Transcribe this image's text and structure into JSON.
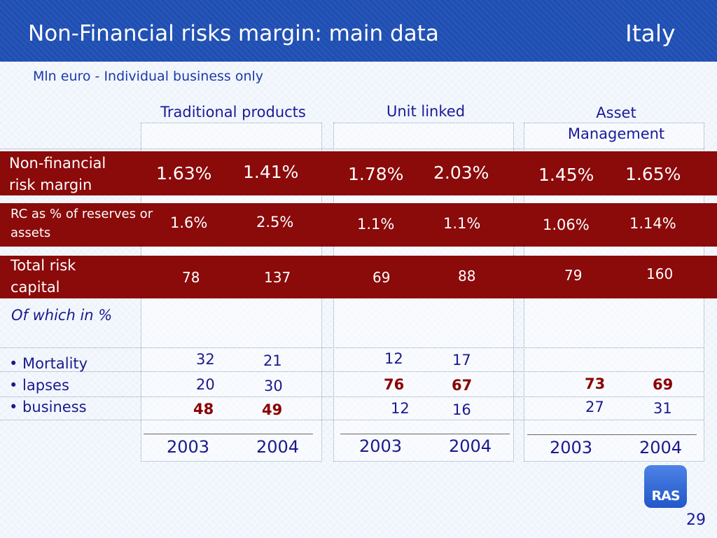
{
  "slide": {
    "title": "Non-Financial risks margin: main data",
    "country": "Italy",
    "subtitle": "Mln euro - Individual business only",
    "page_number": "29",
    "logo_text": "RAS"
  },
  "columns": [
    {
      "label": "Traditional products"
    },
    {
      "label": "Unit linked"
    },
    {
      "label": "Asset Management"
    }
  ],
  "rows": {
    "nfrm": {
      "label": "Non-financial risk margin",
      "values": [
        "1.63%",
        "1.41%",
        "1.78%",
        "2.03%",
        "1.45%",
        "1.65%"
      ]
    },
    "rc": {
      "label": "RC as % of reserves or assets",
      "values": [
        "1.6%",
        "2.5%",
        "1.1%",
        "1.1%",
        "1.06%",
        "1.14%"
      ]
    },
    "trc": {
      "label": "Total risk capital",
      "values": [
        "78",
        "137",
        "69",
        "88",
        "79",
        "160"
      ]
    }
  },
  "of_which_label": "Of which in %",
  "breakdown": {
    "labels": [
      "• Mortality",
      "• lapses",
      "• business"
    ],
    "mortality": [
      "32",
      "21",
      "12",
      "17"
    ],
    "lapses": [
      "20",
      "30",
      "76",
      "67",
      "73",
      "69"
    ],
    "business": [
      "48",
      "49",
      "12",
      "16",
      "27",
      "31"
    ]
  },
  "years": [
    "2003",
    "2004",
    "2003",
    "2004",
    "2003",
    "2004"
  ],
  "colors": {
    "header_blue": "#1f4fb3",
    "band_red": "#8b0a0a",
    "text_navy": "#1a1a8c",
    "highlight_red": "#8b0000"
  }
}
